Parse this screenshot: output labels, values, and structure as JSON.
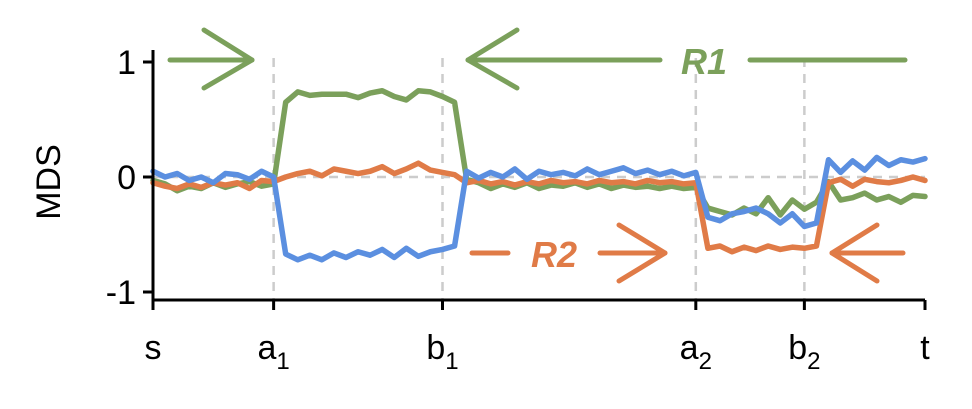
{
  "chart_data": {
    "type": "line",
    "title": "",
    "ylabel": "MDS",
    "xlabel": "",
    "ylim": [
      -1.1,
      1.1
    ],
    "yticks": [
      1,
      0,
      -1
    ],
    "ytick_labels": [
      "1",
      "0",
      "-1"
    ],
    "xticks": [
      0,
      10,
      24,
      45,
      54,
      64
    ],
    "xtick_labels": [
      {
        "base": "s",
        "sub": ""
      },
      {
        "base": "a",
        "sub": "1"
      },
      {
        "base": "b",
        "sub": "1"
      },
      {
        "base": "a",
        "sub": "2"
      },
      {
        "base": "b",
        "sub": "2"
      },
      {
        "base": "t",
        "sub": ""
      }
    ],
    "xlim": [
      0,
      64
    ],
    "grid": "dashed vertical lines at a1, b1, a2, b2 and horizontal line at 0",
    "legend": "none",
    "colors": {
      "green": "#7ba05b",
      "orange": "#e07b47",
      "blue": "#5b8fe0",
      "grid": "#cccccc"
    },
    "series": [
      {
        "color": "#7ba05b",
        "values": [
          -0.03,
          -0.06,
          -0.12,
          -0.08,
          -0.1,
          -0.05,
          -0.09,
          -0.06,
          -0.04,
          -0.08,
          -0.06,
          0.65,
          0.74,
          0.71,
          0.72,
          0.72,
          0.72,
          0.69,
          0.73,
          0.75,
          0.7,
          0.67,
          0.75,
          0.74,
          0.7,
          0.65,
          -0.02,
          -0.05,
          -0.1,
          -0.06,
          -0.09,
          -0.05,
          -0.1,
          -0.07,
          -0.08,
          -0.05,
          -0.09,
          -0.06,
          -0.1,
          -0.07,
          -0.09,
          -0.08,
          -0.1,
          -0.08,
          -0.1,
          -0.09,
          -0.27,
          -0.3,
          -0.33,
          -0.27,
          -0.32,
          -0.18,
          -0.33,
          -0.2,
          -0.28,
          -0.22,
          -0.04,
          -0.2,
          -0.18,
          -0.14,
          -0.2,
          -0.17,
          -0.22,
          -0.16,
          -0.17
        ]
      },
      {
        "color": "#e07b47",
        "values": [
          -0.05,
          -0.08,
          -0.1,
          -0.06,
          -0.09,
          -0.05,
          -0.07,
          -0.05,
          -0.1,
          -0.03,
          -0.04,
          0.0,
          0.03,
          0.05,
          0.01,
          0.07,
          0.05,
          0.03,
          0.05,
          0.09,
          0.03,
          0.07,
          0.12,
          0.06,
          0.04,
          0.02,
          -0.05,
          -0.03,
          -0.06,
          -0.04,
          -0.07,
          -0.04,
          -0.06,
          -0.03,
          -0.05,
          -0.04,
          -0.06,
          -0.03,
          -0.05,
          -0.04,
          -0.06,
          -0.03,
          -0.05,
          -0.04,
          -0.06,
          -0.05,
          -0.62,
          -0.6,
          -0.65,
          -0.61,
          -0.64,
          -0.6,
          -0.63,
          -0.61,
          -0.62,
          -0.6,
          -0.05,
          -0.02,
          -0.08,
          -0.02,
          -0.04,
          -0.05,
          -0.03,
          0.0,
          -0.03
        ]
      },
      {
        "color": "#5b8fe0",
        "values": [
          0.05,
          0.0,
          0.03,
          -0.03,
          0.0,
          -0.05,
          0.03,
          0.02,
          -0.02,
          0.05,
          0.0,
          -0.67,
          -0.72,
          -0.68,
          -0.72,
          -0.66,
          -0.7,
          -0.65,
          -0.68,
          -0.63,
          -0.7,
          -0.62,
          -0.69,
          -0.65,
          -0.63,
          -0.6,
          0.05,
          -0.01,
          0.04,
          0.0,
          0.07,
          -0.02,
          0.05,
          0.02,
          0.04,
          0.01,
          0.07,
          0.02,
          0.05,
          0.08,
          0.03,
          0.06,
          0.02,
          0.05,
          0.01,
          0.04,
          -0.35,
          -0.38,
          -0.32,
          -0.3,
          -0.27,
          -0.32,
          -0.4,
          -0.32,
          -0.43,
          -0.4,
          0.15,
          0.04,
          0.14,
          0.06,
          0.17,
          0.1,
          0.15,
          0.13,
          0.16
        ]
      }
    ],
    "annotations": [
      {
        "label": "R1",
        "color": "#7ba05b"
      },
      {
        "label": "R2",
        "color": "#e07b47"
      }
    ]
  }
}
